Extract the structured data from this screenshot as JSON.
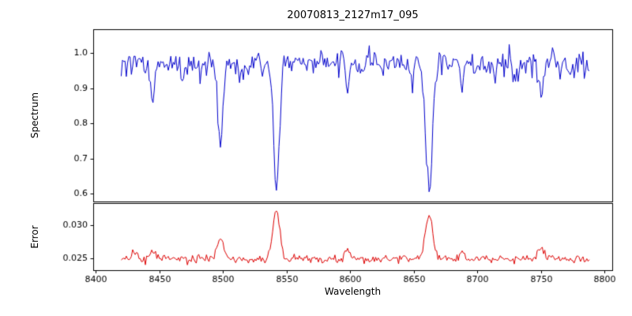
{
  "chart_data": {
    "type": "line",
    "title": "20070813_2127m17_095",
    "xlabel": "Wavelength",
    "xlim": [
      8398,
      8806
    ],
    "xticks": [
      8400,
      8450,
      8500,
      8550,
      8600,
      8650,
      8700,
      8750,
      8800
    ],
    "x_start": 8420,
    "x_end": 8788,
    "x_step": 1,
    "grid": false,
    "legend": false,
    "seed": 20070813,
    "panels": [
      {
        "name": "spectrum",
        "ylabel": "Spectrum",
        "ylim": [
          0.578,
          1.068
        ],
        "yticks": [
          0.6,
          0.7,
          0.8,
          0.9,
          1.0
        ],
        "color": "#0000cc",
        "continuum": 0.972,
        "noise_sigma": 0.019,
        "absorption_lines": [
          {
            "center": 8445,
            "depth": 0.1,
            "width": 1.6
          },
          {
            "center": 8468,
            "depth": 0.045,
            "width": 1.5
          },
          {
            "center": 8498,
            "depth": 0.235,
            "width": 2.0
          },
          {
            "center": 8514,
            "depth": 0.03,
            "width": 1.5
          },
          {
            "center": 8542,
            "depth": 0.36,
            "width": 2.3
          },
          {
            "center": 8582,
            "depth": 0.03,
            "width": 1.5
          },
          {
            "center": 8598,
            "depth": 0.055,
            "width": 1.5
          },
          {
            "center": 8611,
            "depth": 0.03,
            "width": 1.5
          },
          {
            "center": 8648,
            "depth": 0.04,
            "width": 1.5
          },
          {
            "center": 8662,
            "depth": 0.355,
            "width": 2.6
          },
          {
            "center": 8688,
            "depth": 0.05,
            "width": 1.8
          },
          {
            "center": 8713,
            "depth": 0.035,
            "width": 1.5
          },
          {
            "center": 8730,
            "depth": 0.05,
            "width": 1.8
          },
          {
            "center": 8750,
            "depth": 0.105,
            "width": 1.8
          },
          {
            "center": 8772,
            "depth": 0.03,
            "width": 1.5
          }
        ]
      },
      {
        "name": "error",
        "ylabel": "Error",
        "ylim": [
          0.0232,
          0.0334
        ],
        "yticks": [
          0.025,
          0.03
        ],
        "ytick_labels": [
          "0.025",
          "0.030"
        ],
        "color": "#dd0000",
        "baseline": 0.0249,
        "noise_sigma": 0.00032,
        "peaks": [
          {
            "center": 8430,
            "amp": 0.0008,
            "width": 2.0
          },
          {
            "center": 8445,
            "amp": 0.001,
            "width": 2.5
          },
          {
            "center": 8498,
            "amp": 0.003,
            "width": 2.8
          },
          {
            "center": 8542,
            "amp": 0.0072,
            "width": 2.8
          },
          {
            "center": 8598,
            "amp": 0.0012,
            "width": 2.5
          },
          {
            "center": 8662,
            "amp": 0.007,
            "width": 2.8
          },
          {
            "center": 8688,
            "amp": 0.0008,
            "width": 2.5
          },
          {
            "center": 8750,
            "amp": 0.0018,
            "width": 2.5
          }
        ]
      }
    ]
  }
}
